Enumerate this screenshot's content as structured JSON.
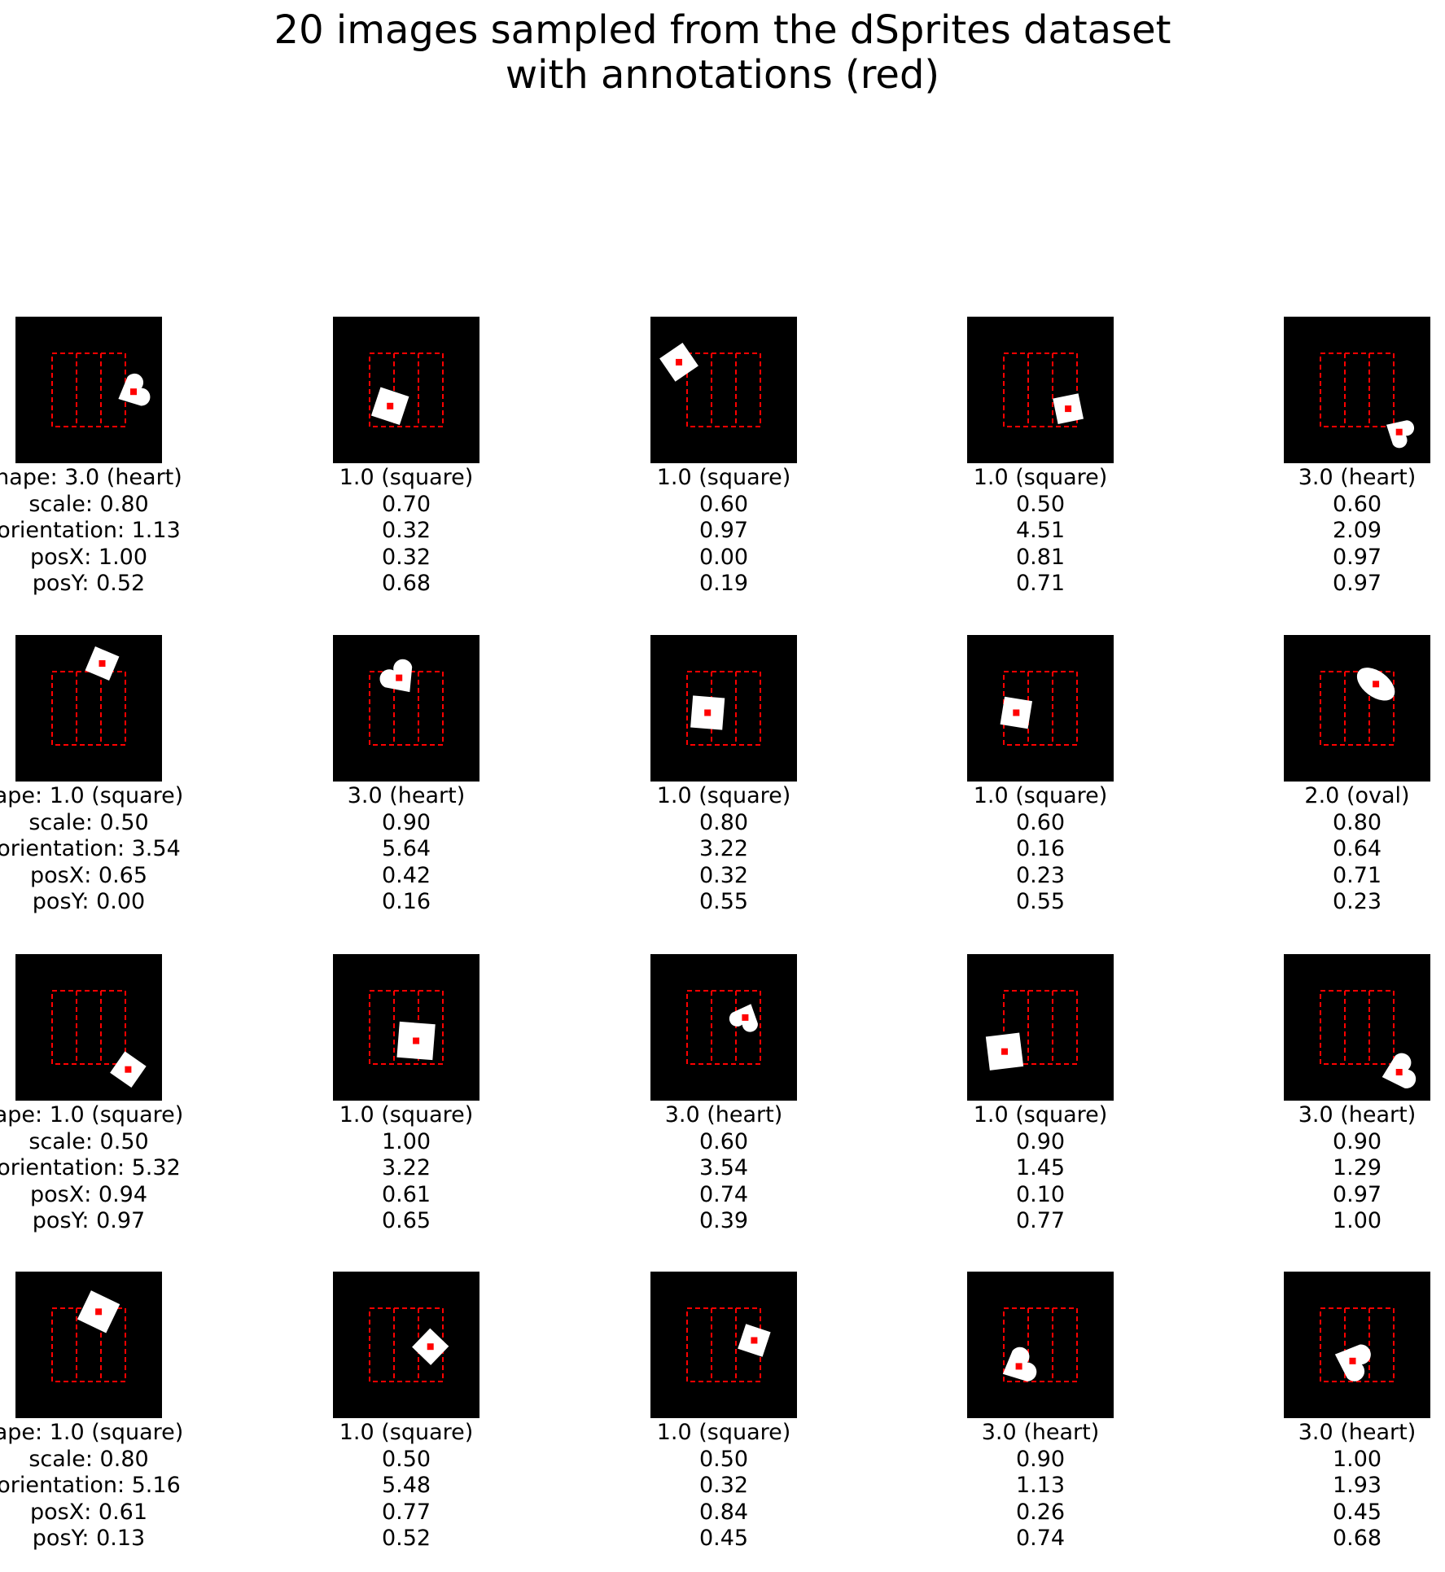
{
  "title": {
    "line1": "20 images sampled from the dSprites dataset",
    "line2": "with annotations (red)"
  },
  "colors": {
    "background": "#000000",
    "sprite": "#ffffff",
    "annotation": "#ff0000"
  },
  "panels": [
    {
      "shape": "heart",
      "shape_label": "hape: 3.0 (heart)",
      "scale": "scale: 0.80",
      "orientation": "orientation: 1.13",
      "posX": "posX: 1.00",
      "posY": "posY: 0.52",
      "v": {
        "scale": 0.8,
        "orientation": 1.13,
        "posX": 1.0,
        "posY": 0.52
      }
    },
    {
      "shape": "square",
      "shape_label": "1.0 (square)",
      "scale": "0.70",
      "orientation": "0.32",
      "posX": "0.32",
      "posY": "0.68",
      "v": {
        "scale": 0.7,
        "orientation": 0.32,
        "posX": 0.32,
        "posY": 0.68
      }
    },
    {
      "shape": "square",
      "shape_label": "1.0 (square)",
      "scale": "0.60",
      "orientation": "0.97",
      "posX": "0.00",
      "posY": "0.19",
      "v": {
        "scale": 0.6,
        "orientation": 0.97,
        "posX": 0.0,
        "posY": 0.19
      }
    },
    {
      "shape": "square",
      "shape_label": "1.0 (square)",
      "scale": "0.50",
      "orientation": "4.51",
      "posX": "0.81",
      "posY": "0.71",
      "v": {
        "scale": 0.5,
        "orientation": 4.51,
        "posX": 0.81,
        "posY": 0.71
      }
    },
    {
      "shape": "heart",
      "shape_label": "3.0 (heart)",
      "scale": "0.60",
      "orientation": "2.09",
      "posX": "0.97",
      "posY": "0.97",
      "v": {
        "scale": 0.6,
        "orientation": 2.09,
        "posX": 0.97,
        "posY": 0.97
      }
    },
    {
      "shape": "square",
      "shape_label": "ape: 1.0 (square)",
      "scale": "scale: 0.50",
      "orientation": "orientation: 3.54",
      "posX": "posX: 0.65",
      "posY": "posY: 0.00",
      "v": {
        "scale": 0.5,
        "orientation": 3.54,
        "posX": 0.65,
        "posY": 0.0
      }
    },
    {
      "shape": "heart",
      "shape_label": "3.0 (heart)",
      "scale": "0.90",
      "orientation": "5.64",
      "posX": "0.42",
      "posY": "0.16",
      "v": {
        "scale": 0.9,
        "orientation": 5.64,
        "posX": 0.42,
        "posY": 0.16
      }
    },
    {
      "shape": "square",
      "shape_label": "1.0 (square)",
      "scale": "0.80",
      "orientation": "3.22",
      "posX": "0.32",
      "posY": "0.55",
      "v": {
        "scale": 0.8,
        "orientation": 3.22,
        "posX": 0.32,
        "posY": 0.55
      }
    },
    {
      "shape": "square",
      "shape_label": "1.0 (square)",
      "scale": "0.60",
      "orientation": "0.16",
      "posX": "0.23",
      "posY": "0.55",
      "v": {
        "scale": 0.6,
        "orientation": 0.16,
        "posX": 0.23,
        "posY": 0.55
      }
    },
    {
      "shape": "oval",
      "shape_label": "2.0 (oval)",
      "scale": "0.80",
      "orientation": "0.64",
      "posX": "0.71",
      "posY": "0.23",
      "v": {
        "scale": 0.8,
        "orientation": 0.64,
        "posX": 0.71,
        "posY": 0.23
      }
    },
    {
      "shape": "square",
      "shape_label": "ape: 1.0 (square)",
      "scale": "scale: 0.50",
      "orientation": "orientation: 5.32",
      "posX": "posX: 0.94",
      "posY": "posY: 0.97",
      "v": {
        "scale": 0.5,
        "orientation": 5.32,
        "posX": 0.94,
        "posY": 0.97
      }
    },
    {
      "shape": "square",
      "shape_label": "1.0 (square)",
      "scale": "1.00",
      "orientation": "3.22",
      "posX": "0.61",
      "posY": "0.65",
      "v": {
        "scale": 1.0,
        "orientation": 3.22,
        "posX": 0.61,
        "posY": 0.65
      }
    },
    {
      "shape": "heart",
      "shape_label": "3.0 (heart)",
      "scale": "0.60",
      "orientation": "3.54",
      "posX": "0.74",
      "posY": "0.39",
      "v": {
        "scale": 0.6,
        "orientation": 3.54,
        "posX": 0.74,
        "posY": 0.39
      }
    },
    {
      "shape": "square",
      "shape_label": "1.0 (square)",
      "scale": "0.90",
      "orientation": "1.45",
      "posX": "0.10",
      "posY": "0.77",
      "v": {
        "scale": 0.9,
        "orientation": 1.45,
        "posX": 0.1,
        "posY": 0.77
      }
    },
    {
      "shape": "heart",
      "shape_label": "3.0 (heart)",
      "scale": "0.90",
      "orientation": "1.29",
      "posX": "0.97",
      "posY": "1.00",
      "v": {
        "scale": 0.9,
        "orientation": 1.29,
        "posX": 0.97,
        "posY": 1.0
      }
    },
    {
      "shape": "square",
      "shape_label": "ape: 1.0 (square)",
      "scale": "scale: 0.80",
      "orientation": "orientation: 5.16",
      "posX": "posX: 0.61",
      "posY": "posY: 0.13",
      "v": {
        "scale": 0.8,
        "orientation": 5.16,
        "posX": 0.61,
        "posY": 0.13
      }
    },
    {
      "shape": "square",
      "shape_label": "1.0 (square)",
      "scale": "0.50",
      "orientation": "5.48",
      "posX": "0.77",
      "posY": "0.52",
      "v": {
        "scale": 0.5,
        "orientation": 5.48,
        "posX": 0.77,
        "posY": 0.52
      }
    },
    {
      "shape": "square",
      "shape_label": "1.0 (square)",
      "scale": "0.50",
      "orientation": "0.32",
      "posX": "0.84",
      "posY": "0.45",
      "v": {
        "scale": 0.5,
        "orientation": 0.32,
        "posX": 0.84,
        "posY": 0.45
      }
    },
    {
      "shape": "heart",
      "shape_label": "3.0 (heart)",
      "scale": "0.90",
      "orientation": "1.13",
      "posX": "0.26",
      "posY": "0.74",
      "v": {
        "scale": 0.9,
        "orientation": 1.13,
        "posX": 0.26,
        "posY": 0.74
      }
    },
    {
      "shape": "heart",
      "shape_label": "3.0 (heart)",
      "scale": "1.00",
      "orientation": "1.93",
      "posX": "0.45",
      "posY": "0.68",
      "v": {
        "scale": 1.0,
        "orientation": 1.93,
        "posX": 0.45,
        "posY": 0.68
      }
    }
  ]
}
